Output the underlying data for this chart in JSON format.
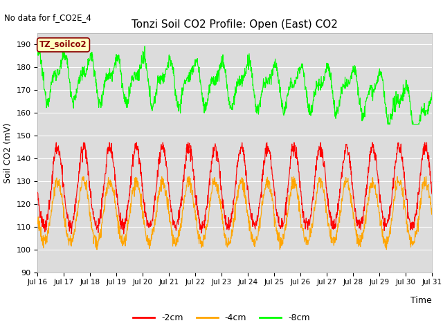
{
  "title": "Tonzi Soil CO2 Profile: Open (East) CO2",
  "subtitle": "No data for f_CO2E_4",
  "ylabel": "Soil CO2 (mV)",
  "xlabel": "Time",
  "legend_label": "TZ_soilco2",
  "ylim": [
    90,
    195
  ],
  "yticks": [
    90,
    100,
    110,
    120,
    130,
    140,
    150,
    160,
    170,
    180,
    190
  ],
  "xticklabels": [
    "Jul 16",
    "Jul 17",
    "Jul 18",
    "Jul 19",
    "Jul 20",
    "Jul 21",
    "Jul 22",
    "Jul 23",
    "Jul 24",
    "Jul 25",
    "Jul 26",
    "Jul 27",
    "Jul 28",
    "Jul 29",
    "Jul 30",
    "Jul 31"
  ],
  "color_2cm": "#ff0000",
  "color_4cm": "#ffa500",
  "color_8cm": "#00ff00",
  "legend_entries": [
    "-2cm",
    "-4cm",
    "-8cm"
  ],
  "bg_color": "#dcdcdc",
  "legend_box_color": "#ffffc0",
  "legend_box_border": "#8b0000"
}
